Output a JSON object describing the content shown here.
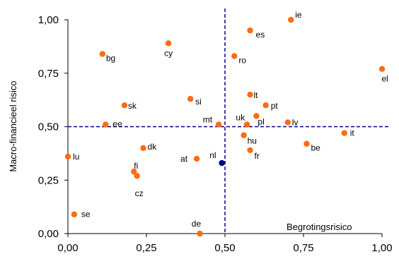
{
  "chart_data": {
    "type": "scatter",
    "xlabel": "Begrotingsrisico",
    "ylabel": "Macro-financieel risico",
    "xlim": [
      0,
      1
    ],
    "ylim": [
      0,
      1
    ],
    "xticks": [
      "0,00",
      "0,25",
      "0,50",
      "0,75",
      "1,00"
    ],
    "yticks": [
      "0,00",
      "0,25",
      "0,50",
      "0,75",
      "1,00"
    ],
    "reference_lines": {
      "x": 0.5,
      "y": 0.5,
      "style": "dashed",
      "color": "#00008b"
    },
    "grid": false,
    "colors": {
      "countries": "#ff6a13",
      "highlight": "#00008b"
    },
    "points": [
      {
        "label": "ie",
        "x": 0.71,
        "y": 1.0
      },
      {
        "label": "es",
        "x": 0.58,
        "y": 0.95
      },
      {
        "label": "cy",
        "x": 0.32,
        "y": 0.89
      },
      {
        "label": "bg",
        "x": 0.11,
        "y": 0.84
      },
      {
        "label": "ro",
        "x": 0.53,
        "y": 0.83
      },
      {
        "label": "el",
        "x": 1.0,
        "y": 0.77
      },
      {
        "label": "lt",
        "x": 0.58,
        "y": 0.65
      },
      {
        "label": "si",
        "x": 0.39,
        "y": 0.63
      },
      {
        "label": "pt",
        "x": 0.63,
        "y": 0.6
      },
      {
        "label": "sk",
        "x": 0.18,
        "y": 0.6
      },
      {
        "label": "pl",
        "x": 0.6,
        "y": 0.55
      },
      {
        "label": "uk",
        "x": 0.57,
        "y": 0.51
      },
      {
        "label": "mt",
        "x": 0.48,
        "y": 0.51
      },
      {
        "label": "lv",
        "x": 0.7,
        "y": 0.52
      },
      {
        "label": "ee",
        "x": 0.12,
        "y": 0.51
      },
      {
        "label": "it",
        "x": 0.88,
        "y": 0.47
      },
      {
        "label": "hu",
        "x": 0.56,
        "y": 0.46
      },
      {
        "label": "be",
        "x": 0.76,
        "y": 0.42
      },
      {
        "label": "dk",
        "x": 0.24,
        "y": 0.4
      },
      {
        "label": "fr",
        "x": 0.58,
        "y": 0.39
      },
      {
        "label": "lu",
        "x": 0.0,
        "y": 0.36
      },
      {
        "label": "at",
        "x": 0.41,
        "y": 0.35
      },
      {
        "label": "nl",
        "x": 0.49,
        "y": 0.33,
        "highlight": true
      },
      {
        "label": "fi",
        "x": 0.21,
        "y": 0.29
      },
      {
        "label": "cz",
        "x": 0.22,
        "y": 0.27
      },
      {
        "label": "se",
        "x": 0.02,
        "y": 0.09
      },
      {
        "label": "de",
        "x": 0.42,
        "y": 0.0
      }
    ]
  }
}
